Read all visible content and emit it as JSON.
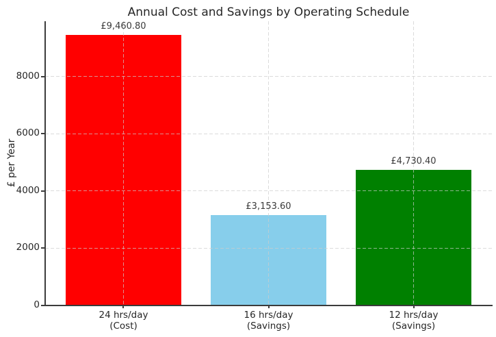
{
  "chart_data": {
    "type": "bar",
    "title": "Annual Cost and Savings by Operating Schedule",
    "xlabel": "",
    "ylabel": "£ per Year",
    "categories": [
      "24 hrs/day\n(Cost)",
      "16 hrs/day\n(Savings)",
      "12 hrs/day\n(Savings)"
    ],
    "values": [
      9460.8,
      3153.6,
      4730.4
    ],
    "value_labels": [
      "£9,460.80",
      "£3,153.60",
      "£4,730.40"
    ],
    "bar_colors": [
      "#ff0000",
      "#87ceeb",
      "#008000"
    ],
    "bar_names": [
      "bar-24hrs-cost",
      "bar-16hrs-savings",
      "bar-12hrs-savings"
    ],
    "ylim": [
      0,
      9933
    ],
    "yticks": [
      0,
      2000,
      4000,
      6000,
      8000
    ],
    "ytick_labels": [
      "0",
      "2000",
      "4000",
      "6000",
      "8000"
    ],
    "xlim": [
      -0.54,
      2.54
    ],
    "bar_width": 0.8,
    "grid": {
      "on": true,
      "linestyle": "dashed",
      "axes": "both",
      "color": "#cccccc",
      "drawn_over_bars": true
    },
    "legend": "none",
    "spines": {
      "visible": [
        "left",
        "bottom"
      ],
      "color": "#3b3b3b"
    },
    "colors": {
      "background": "#ffffff",
      "title": "#262626",
      "tick_label": "#262626",
      "value_label": "#3a3a3a"
    }
  }
}
